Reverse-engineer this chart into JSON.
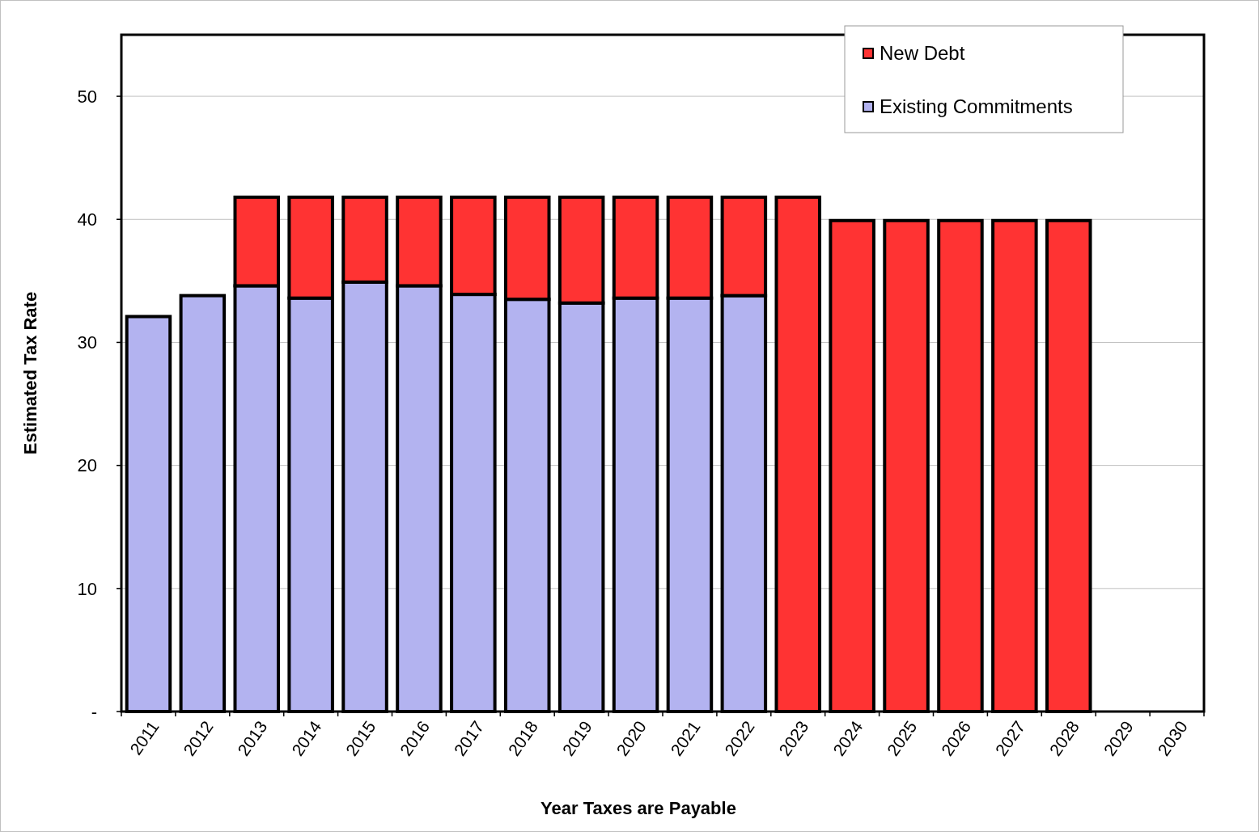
{
  "chart_data": {
    "type": "bar",
    "stacked": true,
    "xlabel": "Year Taxes are Payable",
    "ylabel": "Estimated Tax Rate",
    "categories": [
      "2011",
      "2012",
      "2013",
      "2014",
      "2015",
      "2016",
      "2017",
      "2018",
      "2019",
      "2020",
      "2021",
      "2022",
      "2023",
      "2024",
      "2025",
      "2026",
      "2027",
      "2028",
      "2029",
      "2030"
    ],
    "series": [
      {
        "name": "Existing Commitments",
        "color": "#b3b3f0",
        "values": [
          32.1,
          33.8,
          34.6,
          33.6,
          34.9,
          34.6,
          33.9,
          33.5,
          33.2,
          33.6,
          33.6,
          33.8,
          null,
          null,
          null,
          null,
          null,
          null,
          null,
          null
        ]
      },
      {
        "name": "New Debt",
        "color": "#ff3333",
        "values": [
          null,
          null,
          7.2,
          8.2,
          6.9,
          7.2,
          7.9,
          8.3,
          8.6,
          8.2,
          8.2,
          8.0,
          41.8,
          39.9,
          39.9,
          39.9,
          39.9,
          39.9,
          null,
          null
        ]
      }
    ],
    "ylim": [
      0,
      55
    ],
    "yticks": [
      {
        "value": 0,
        "label": "-"
      },
      10,
      20,
      30,
      40,
      50
    ],
    "grid": "y",
    "legend": "top right"
  }
}
